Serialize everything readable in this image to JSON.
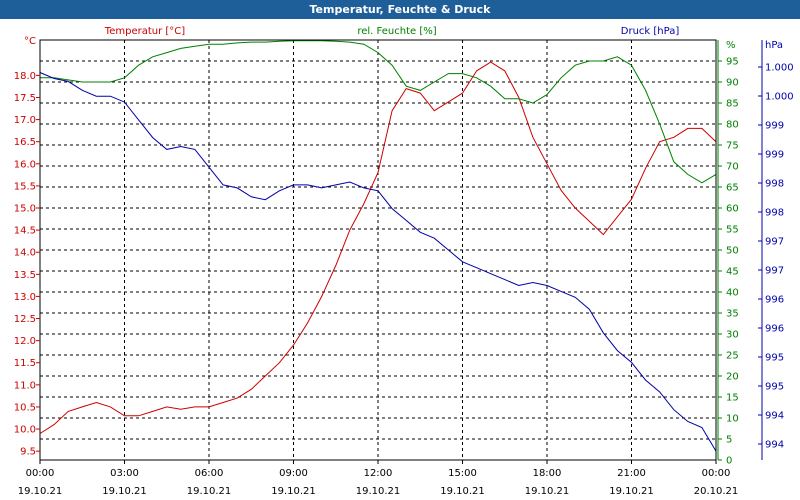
{
  "window": {
    "title": "Temperatur, Feuchte & Druck"
  },
  "colors": {
    "temperature": "#cc0000",
    "humidity": "#008000",
    "pressure": "#0000aa",
    "grid": "#000000",
    "frame": "#000000",
    "titlebar": "#1f5f99"
  },
  "chart_data": {
    "type": "line",
    "grid": true,
    "xaxis": {
      "range": [
        "2021-10-19 00:00",
        "2021-10-20 00:00"
      ],
      "ticks": [
        {
          "time": "00:00",
          "date": "19.10.21"
        },
        {
          "time": "03:00",
          "date": "19.10.21"
        },
        {
          "time": "06:00",
          "date": "19.10.21"
        },
        {
          "time": "09:00",
          "date": "19.10.21"
        },
        {
          "time": "12:00",
          "date": "19.10.21"
        },
        {
          "time": "15:00",
          "date": "19.10.21"
        },
        {
          "time": "18:00",
          "date": "19.10.21"
        },
        {
          "time": "21:00",
          "date": "19.10.21"
        },
        {
          "time": "00:00",
          "date": "20.10.21"
        }
      ]
    },
    "axes": {
      "temperature": {
        "label": "Temperatur [°C]",
        "unit": "°C",
        "range": [
          9.3,
          18.8
        ],
        "ticks": [
          "18.0",
          "17.5",
          "17.0",
          "16.5",
          "16.0",
          "15.5",
          "15.0",
          "14.5",
          "14.0",
          "13.5",
          "13.0",
          "12.5",
          "12.0",
          "11.5",
          "11.0",
          "10.5",
          "10.0",
          "9.5"
        ]
      },
      "humidity": {
        "label": "rel. Feuchte [%]",
        "unit": "%",
        "range": [
          0,
          100
        ],
        "ticks": [
          "95",
          "90",
          "85",
          "80",
          "75",
          "70",
          "65",
          "60",
          "55",
          "50",
          "45",
          "40",
          "35",
          "30",
          "25",
          "20",
          "15",
          "10",
          "5",
          "0"
        ]
      },
      "pressure": {
        "label": "Druck [hPa]",
        "unit": "hPa",
        "range": [
          993.55,
          1000.65
        ],
        "ticks": [
          "1.000",
          "1.000",
          "999",
          "999",
          "998",
          "998",
          "997",
          "997",
          "996",
          "996",
          "995",
          "995",
          "994",
          "994"
        ]
      }
    },
    "series": [
      {
        "name": "Temperatur [°C]",
        "axis": "temperature",
        "x": [
          0,
          0.5,
          1,
          1.5,
          2,
          2.5,
          3,
          3.5,
          4,
          4.5,
          5,
          5.5,
          6,
          6.5,
          7,
          7.5,
          8,
          8.5,
          9,
          9.5,
          10,
          10.5,
          11,
          11.5,
          12,
          12.5,
          13,
          13.5,
          14,
          14.5,
          15,
          15.5,
          16,
          16.5,
          17,
          17.5,
          18,
          18.5,
          19,
          19.5,
          20,
          20.5,
          21,
          21.5,
          22,
          22.5,
          23,
          23.5,
          24
        ],
        "y": [
          9.9,
          10.1,
          10.4,
          10.5,
          10.6,
          10.5,
          10.3,
          10.3,
          10.4,
          10.5,
          10.45,
          10.5,
          10.5,
          10.6,
          10.7,
          10.9,
          11.2,
          11.5,
          11.9,
          12.4,
          13.0,
          13.7,
          14.5,
          15.1,
          15.8,
          17.2,
          17.7,
          17.6,
          17.2,
          17.4,
          17.6,
          18.1,
          18.3,
          18.1,
          17.5,
          16.6,
          16.0,
          15.4,
          15.0,
          14.7,
          14.4,
          14.8,
          15.2,
          15.9,
          16.5,
          16.6,
          16.8,
          16.8,
          16.5
        ]
      },
      {
        "name": "rel. Feuchte [%]",
        "axis": "humidity",
        "x": [
          0,
          0.5,
          1,
          1.5,
          2,
          2.5,
          3,
          3.5,
          4,
          4.5,
          5,
          5.5,
          6,
          6.5,
          7,
          7.5,
          8,
          8.5,
          9,
          9.5,
          10,
          10.5,
          11,
          11.5,
          12,
          12.5,
          13,
          13.5,
          14,
          14.5,
          15,
          15.5,
          16,
          16.5,
          17,
          17.5,
          18,
          18.5,
          19,
          19.5,
          20,
          20.5,
          21,
          21.5,
          22,
          22.5,
          23,
          23.5,
          24
        ],
        "y": [
          91,
          91,
          90.5,
          90,
          90,
          90,
          91,
          94,
          96,
          97,
          98,
          98.5,
          99,
          99,
          99.3,
          99.5,
          99.5,
          99.7,
          99.8,
          99.8,
          99.8,
          99.7,
          99.5,
          99,
          97,
          94,
          89,
          88,
          90,
          92,
          92,
          91,
          89,
          86,
          86,
          85,
          87,
          91,
          94,
          95,
          95,
          96,
          94,
          88,
          80,
          71,
          68,
          66,
          68
        ]
      },
      {
        "name": "Druck [hPa]",
        "axis": "pressure",
        "x": [
          0,
          0.5,
          1,
          1.5,
          2,
          2.5,
          3,
          3.5,
          4,
          4.5,
          5,
          5.5,
          6,
          6.5,
          7,
          7.5,
          8,
          8.5,
          9,
          9.5,
          10,
          10.5,
          11,
          11.5,
          12,
          12.5,
          13,
          13.5,
          14,
          14.5,
          15,
          15.5,
          16,
          16.5,
          17,
          17.5,
          18,
          18.5,
          19,
          19.5,
          20,
          20.5,
          21,
          21.5,
          22,
          22.5,
          23,
          23.5,
          24
        ],
        "y": [
          1000.1,
          1000.0,
          999.95,
          999.8,
          999.7,
          999.7,
          999.6,
          999.3,
          999.0,
          998.8,
          998.85,
          998.8,
          998.5,
          998.2,
          998.15,
          998.0,
          997.95,
          998.1,
          998.2,
          998.2,
          998.15,
          998.2,
          998.25,
          998.15,
          998.1,
          997.8,
          997.6,
          997.4,
          997.3,
          997.1,
          996.9,
          996.8,
          996.7,
          996.6,
          996.5,
          996.55,
          996.5,
          996.4,
          996.3,
          996.1,
          995.7,
          995.4,
          995.2,
          994.9,
          994.7,
          994.4,
          994.2,
          994.1,
          993.7
        ]
      }
    ]
  }
}
